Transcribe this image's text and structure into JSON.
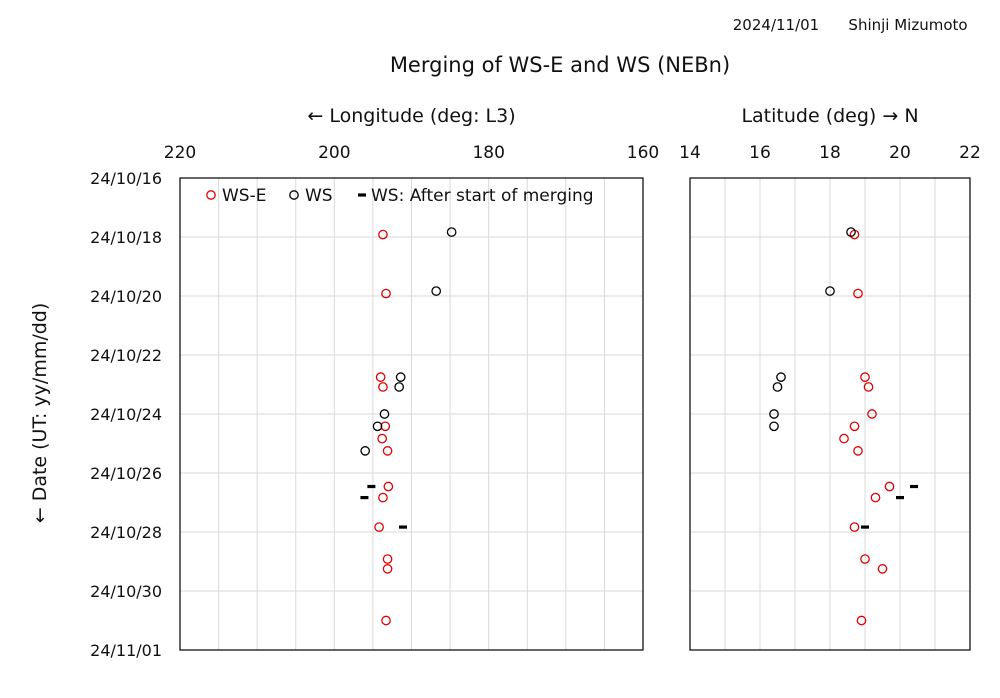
{
  "header": {
    "date": "2024/11/01",
    "author": "Shinji Mizumoto",
    "title": "Merging of WS-E and WS (NEBn)"
  },
  "colors": {
    "ws_e": "#e00000",
    "ws": "#000000",
    "grid": "#d9d9d9"
  },
  "chart_data": {
    "type": "scatter",
    "title": "Merging of WS-E and WS (NEBn)",
    "ylabel": "← Date (UT: yy/mm/dd)",
    "y_ticks": [
      "24/10/16",
      "24/10/18",
      "24/10/20",
      "24/10/22",
      "24/10/24",
      "24/10/26",
      "24/10/28",
      "24/10/30",
      "24/11/01"
    ],
    "ylim": [
      "2024-10-16",
      "2024-11-01"
    ],
    "legend": {
      "placement": "top",
      "items": [
        {
          "label": "WS-E",
          "marker": "circle",
          "color": "#e00000"
        },
        {
          "label": "WS",
          "marker": "circle",
          "color": "#000000"
        },
        {
          "label": "WS: After start of merging",
          "marker": "dash",
          "color": "#000000"
        }
      ]
    },
    "panels": [
      {
        "id": "longitude",
        "xlabel": "← Longitude (deg: L3)",
        "xlim": [
          220,
          160
        ],
        "x_ticks": [
          220,
          200,
          180,
          160
        ],
        "series": [
          {
            "name": "WS-E",
            "marker": "circle",
            "color": "#e00000",
            "points": [
              {
                "date": "2024-10-17 22:00",
                "x": 193.7
              },
              {
                "date": "2024-10-19 22:00",
                "x": 193.3
              },
              {
                "date": "2024-10-22 18:00",
                "x": 194.0
              },
              {
                "date": "2024-10-23 02:00",
                "x": 193.7
              },
              {
                "date": "2024-10-24 10:00",
                "x": 193.4
              },
              {
                "date": "2024-10-24 20:00",
                "x": 193.8
              },
              {
                "date": "2024-10-25 06:00",
                "x": 193.1
              },
              {
                "date": "2024-10-26 11:00",
                "x": 193.0
              },
              {
                "date": "2024-10-26 20:00",
                "x": 193.7
              },
              {
                "date": "2024-10-27 20:00",
                "x": 194.2
              },
              {
                "date": "2024-10-28 22:00",
                "x": 193.1
              },
              {
                "date": "2024-10-29 06:00",
                "x": 193.1
              },
              {
                "date": "2024-10-31 00:00",
                "x": 193.3
              }
            ]
          },
          {
            "name": "WS",
            "marker": "circle",
            "color": "#000000",
            "points": [
              {
                "date": "2024-10-17 20:00",
                "x": 184.8
              },
              {
                "date": "2024-10-19 20:00",
                "x": 186.8
              },
              {
                "date": "2024-10-22 18:00",
                "x": 191.4
              },
              {
                "date": "2024-10-23 02:00",
                "x": 191.6
              },
              {
                "date": "2024-10-24 00:00",
                "x": 193.5
              },
              {
                "date": "2024-10-24 10:00",
                "x": 194.4
              },
              {
                "date": "2024-10-25 06:00",
                "x": 196.0
              }
            ]
          },
          {
            "name": "WS: After start of merging",
            "marker": "dash",
            "color": "#000000",
            "points": [
              {
                "date": "2024-10-26 11:00",
                "x": 195.2
              },
              {
                "date": "2024-10-26 20:00",
                "x": 196.1
              },
              {
                "date": "2024-10-27 20:00",
                "x": 191.1
              }
            ]
          }
        ]
      },
      {
        "id": "latitude",
        "xlabel": "Latitude (deg) → N",
        "xlim": [
          14,
          22
        ],
        "x_ticks": [
          14,
          16,
          18,
          20,
          22
        ],
        "series": [
          {
            "name": "WS-E",
            "marker": "circle",
            "color": "#e00000",
            "points": [
              {
                "date": "2024-10-17 22:00",
                "x": 18.7
              },
              {
                "date": "2024-10-19 22:00",
                "x": 18.8
              },
              {
                "date": "2024-10-22 18:00",
                "x": 19.0
              },
              {
                "date": "2024-10-23 02:00",
                "x": 19.1
              },
              {
                "date": "2024-10-24 00:00",
                "x": 19.2
              },
              {
                "date": "2024-10-24 10:00",
                "x": 18.7
              },
              {
                "date": "2024-10-24 20:00",
                "x": 18.4
              },
              {
                "date": "2024-10-25 06:00",
                "x": 18.8
              },
              {
                "date": "2024-10-26 11:00",
                "x": 19.7
              },
              {
                "date": "2024-10-26 20:00",
                "x": 19.3
              },
              {
                "date": "2024-10-27 20:00",
                "x": 18.7
              },
              {
                "date": "2024-10-28 22:00",
                "x": 19.0
              },
              {
                "date": "2024-10-29 06:00",
                "x": 19.5
              },
              {
                "date": "2024-10-31 00:00",
                "x": 18.9
              }
            ]
          },
          {
            "name": "WS",
            "marker": "circle",
            "color": "#000000",
            "points": [
              {
                "date": "2024-10-17 20:00",
                "x": 18.6
              },
              {
                "date": "2024-10-19 20:00",
                "x": 18.0
              },
              {
                "date": "2024-10-22 18:00",
                "x": 16.6
              },
              {
                "date": "2024-10-23 02:00",
                "x": 16.5
              },
              {
                "date": "2024-10-24 00:00",
                "x": 16.4
              },
              {
                "date": "2024-10-24 10:00",
                "x": 16.4
              }
            ]
          },
          {
            "name": "WS: After start of merging",
            "marker": "dash",
            "color": "#000000",
            "points": [
              {
                "date": "2024-10-26 11:00",
                "x": 20.4
              },
              {
                "date": "2024-10-26 20:00",
                "x": 20.0
              },
              {
                "date": "2024-10-27 20:00",
                "x": 19.0
              }
            ]
          }
        ]
      }
    ]
  }
}
